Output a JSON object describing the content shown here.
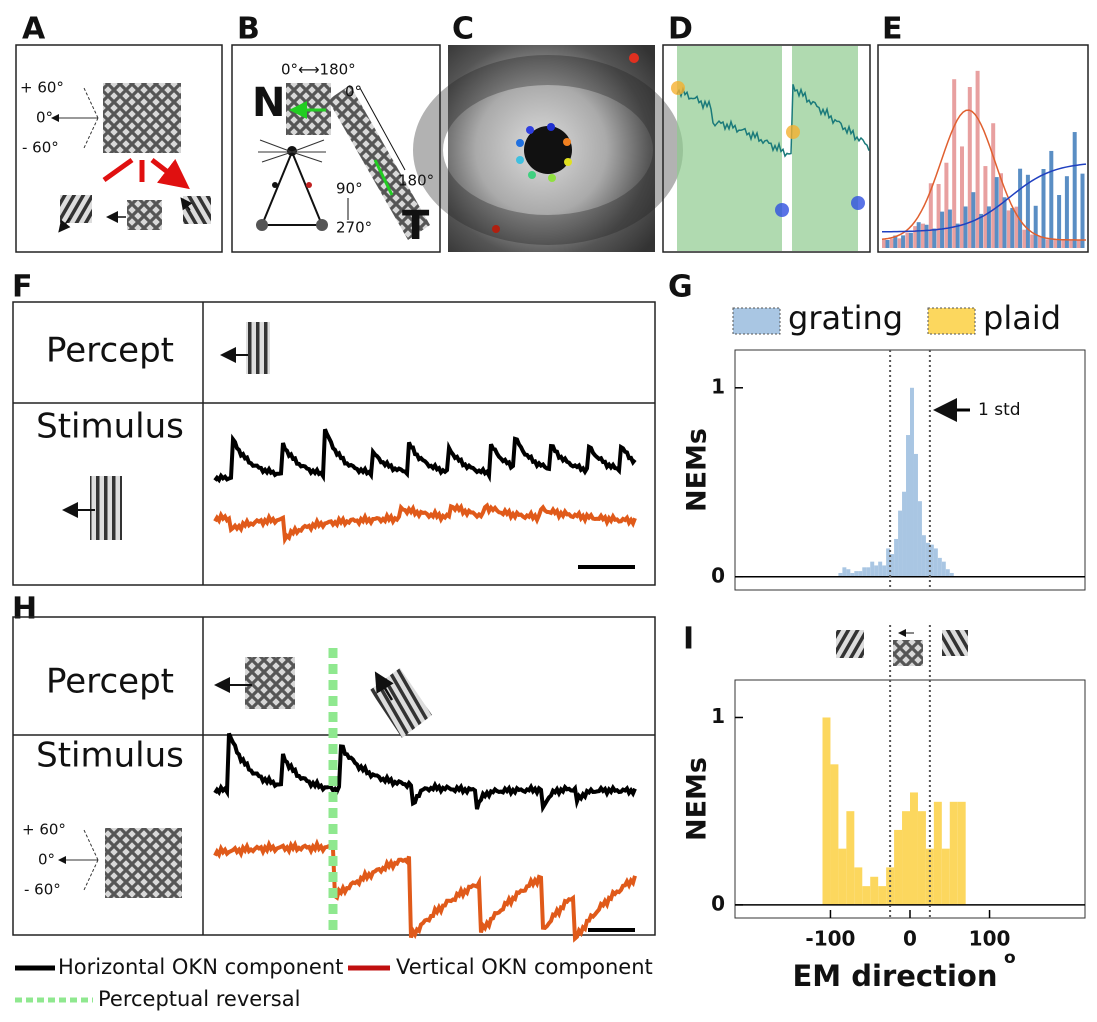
{
  "panel_labels": [
    "A",
    "B",
    "C",
    "D",
    "E",
    "F",
    "G",
    "H",
    "I"
  ],
  "panel_a": {
    "angles": [
      "+ 60°",
      "0°",
      "- 60°"
    ]
  },
  "panel_b": {
    "range": "0°⟷180°",
    "nasal": "N",
    "strip_start": "0°",
    "strip_end": "180°",
    "vertical_top": "90°",
    "vertical_bottom": "270°",
    "temporal": "T"
  },
  "panel_f": {
    "percept": "Percept",
    "stimulus": "Stimulus"
  },
  "panel_h": {
    "percept": "Percept",
    "stimulus": "Stimulus",
    "angles": [
      "+ 60°",
      "0°",
      "- 60°"
    ]
  },
  "legend": [
    "Horizontal OKN component",
    "Vertical OKN component",
    "Perceptual reversal"
  ],
  "chart_data": [
    {
      "type": "histogram",
      "ylabel": "NEMs",
      "annotation": "1 std",
      "bins": [
        -90,
        -85,
        -80,
        -75,
        -70,
        -65,
        -60,
        -55,
        -50,
        -45,
        -40,
        -35,
        -30,
        -25,
        -20,
        -15,
        -10,
        -5,
        0,
        5,
        10,
        15,
        20,
        25,
        30,
        35,
        40,
        45,
        50,
        55
      ],
      "series": [
        {
          "name": "grating",
          "color": "#a9c6e3",
          "values": [
            0.02,
            0.05,
            0.04,
            0.02,
            0.03,
            0.03,
            0.05,
            0.05,
            0.08,
            0.06,
            0.08,
            0.06,
            0.15,
            0.12,
            0.2,
            0.35,
            0.45,
            0.75,
            1.0,
            0.65,
            0.4,
            0.22,
            0.18,
            0.17,
            0.15,
            0.1,
            0.08,
            0.04,
            0.02
          ]
        }
      ],
      "xlim": [
        -220,
        220
      ],
      "ylim": [
        -0.07,
        1.2
      ],
      "yticks": [
        0,
        1
      ],
      "vlines": [
        -25,
        25
      ]
    },
    {
      "type": "histogram",
      "ylabel": "NEMs",
      "xlabel": "EM direction",
      "xunit": "o",
      "bins": [
        -110,
        -100,
        -90,
        -80,
        -70,
        -60,
        -50,
        -40,
        -30,
        -20,
        -10,
        0,
        10,
        20,
        30,
        40,
        50,
        60,
        70
      ],
      "series": [
        {
          "name": "plaid",
          "color": "#fcd75e",
          "values": [
            1.0,
            0.75,
            0.3,
            0.5,
            0.2,
            0.1,
            0.15,
            0.1,
            0.2,
            0.4,
            0.5,
            0.6,
            0.5,
            0.3,
            0.55,
            0.3,
            0.55,
            0.55
          ]
        }
      ],
      "xlim": [
        -220,
        220
      ],
      "ylim": [
        -0.07,
        1.2
      ],
      "xticks": [
        -100,
        0,
        100
      ],
      "yticks": [
        0,
        1
      ],
      "vlines": [
        -25,
        25
      ]
    }
  ]
}
